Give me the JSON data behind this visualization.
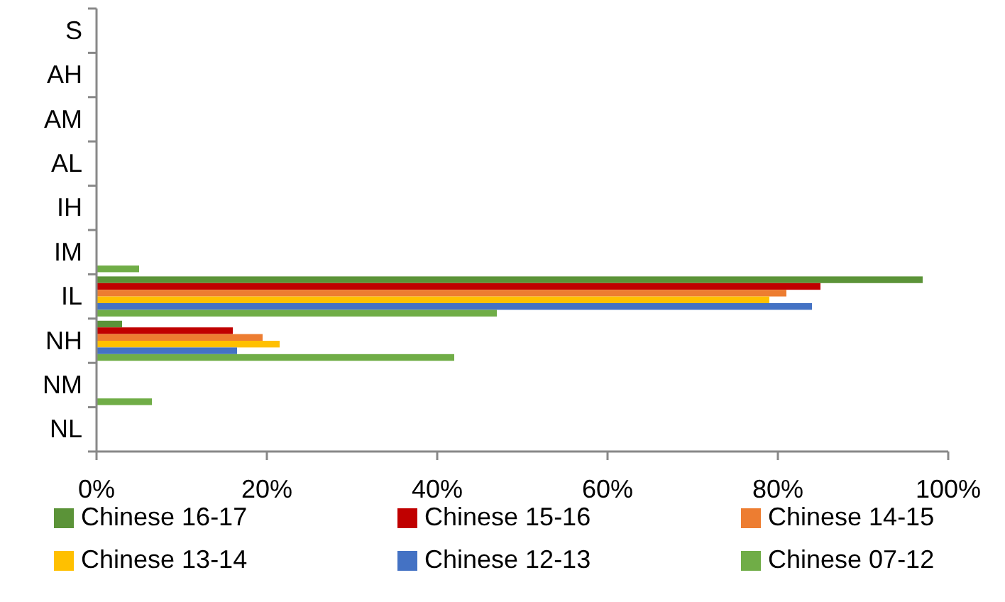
{
  "chart_data": {
    "type": "bar",
    "orientation": "horizontal",
    "categories": [
      "S",
      "AH",
      "AM",
      "AL",
      "IH",
      "IM",
      "IL",
      "NH",
      "NM",
      "NL"
    ],
    "series": [
      {
        "name": "Chinese 16-17",
        "color": "#5b9338",
        "values": [
          null,
          null,
          null,
          null,
          null,
          null,
          97,
          3,
          null,
          null
        ]
      },
      {
        "name": "Chinese 15-16",
        "color": "#c00000",
        "values": [
          null,
          null,
          null,
          null,
          null,
          null,
          85,
          16,
          null,
          null
        ]
      },
      {
        "name": "Chinese 14-15",
        "color": "#ed7d31",
        "values": [
          null,
          null,
          null,
          null,
          null,
          null,
          81,
          19.5,
          null,
          null
        ]
      },
      {
        "name": "Chinese 13-14",
        "color": "#ffc000",
        "values": [
          null,
          null,
          null,
          null,
          null,
          null,
          79,
          21.5,
          null,
          null
        ]
      },
      {
        "name": "Chinese 12-13",
        "color": "#4472c4",
        "values": [
          null,
          null,
          null,
          null,
          null,
          null,
          84,
          16.5,
          null,
          null
        ]
      },
      {
        "name": "Chinese 07-12",
        "color": "#70ad47",
        "values": [
          null,
          null,
          null,
          null,
          null,
          5,
          47,
          42,
          6.5,
          null
        ]
      }
    ],
    "xlim": [
      0,
      100
    ],
    "xticks": [
      {
        "value": 0,
        "label": "0%"
      },
      {
        "value": 20,
        "label": "20%"
      },
      {
        "value": 40,
        "label": "40%"
      },
      {
        "value": 60,
        "label": "60%"
      },
      {
        "value": 80,
        "label": "80%"
      },
      {
        "value": 100,
        "label": "100%"
      }
    ],
    "legend": "bottom",
    "grid": false
  }
}
